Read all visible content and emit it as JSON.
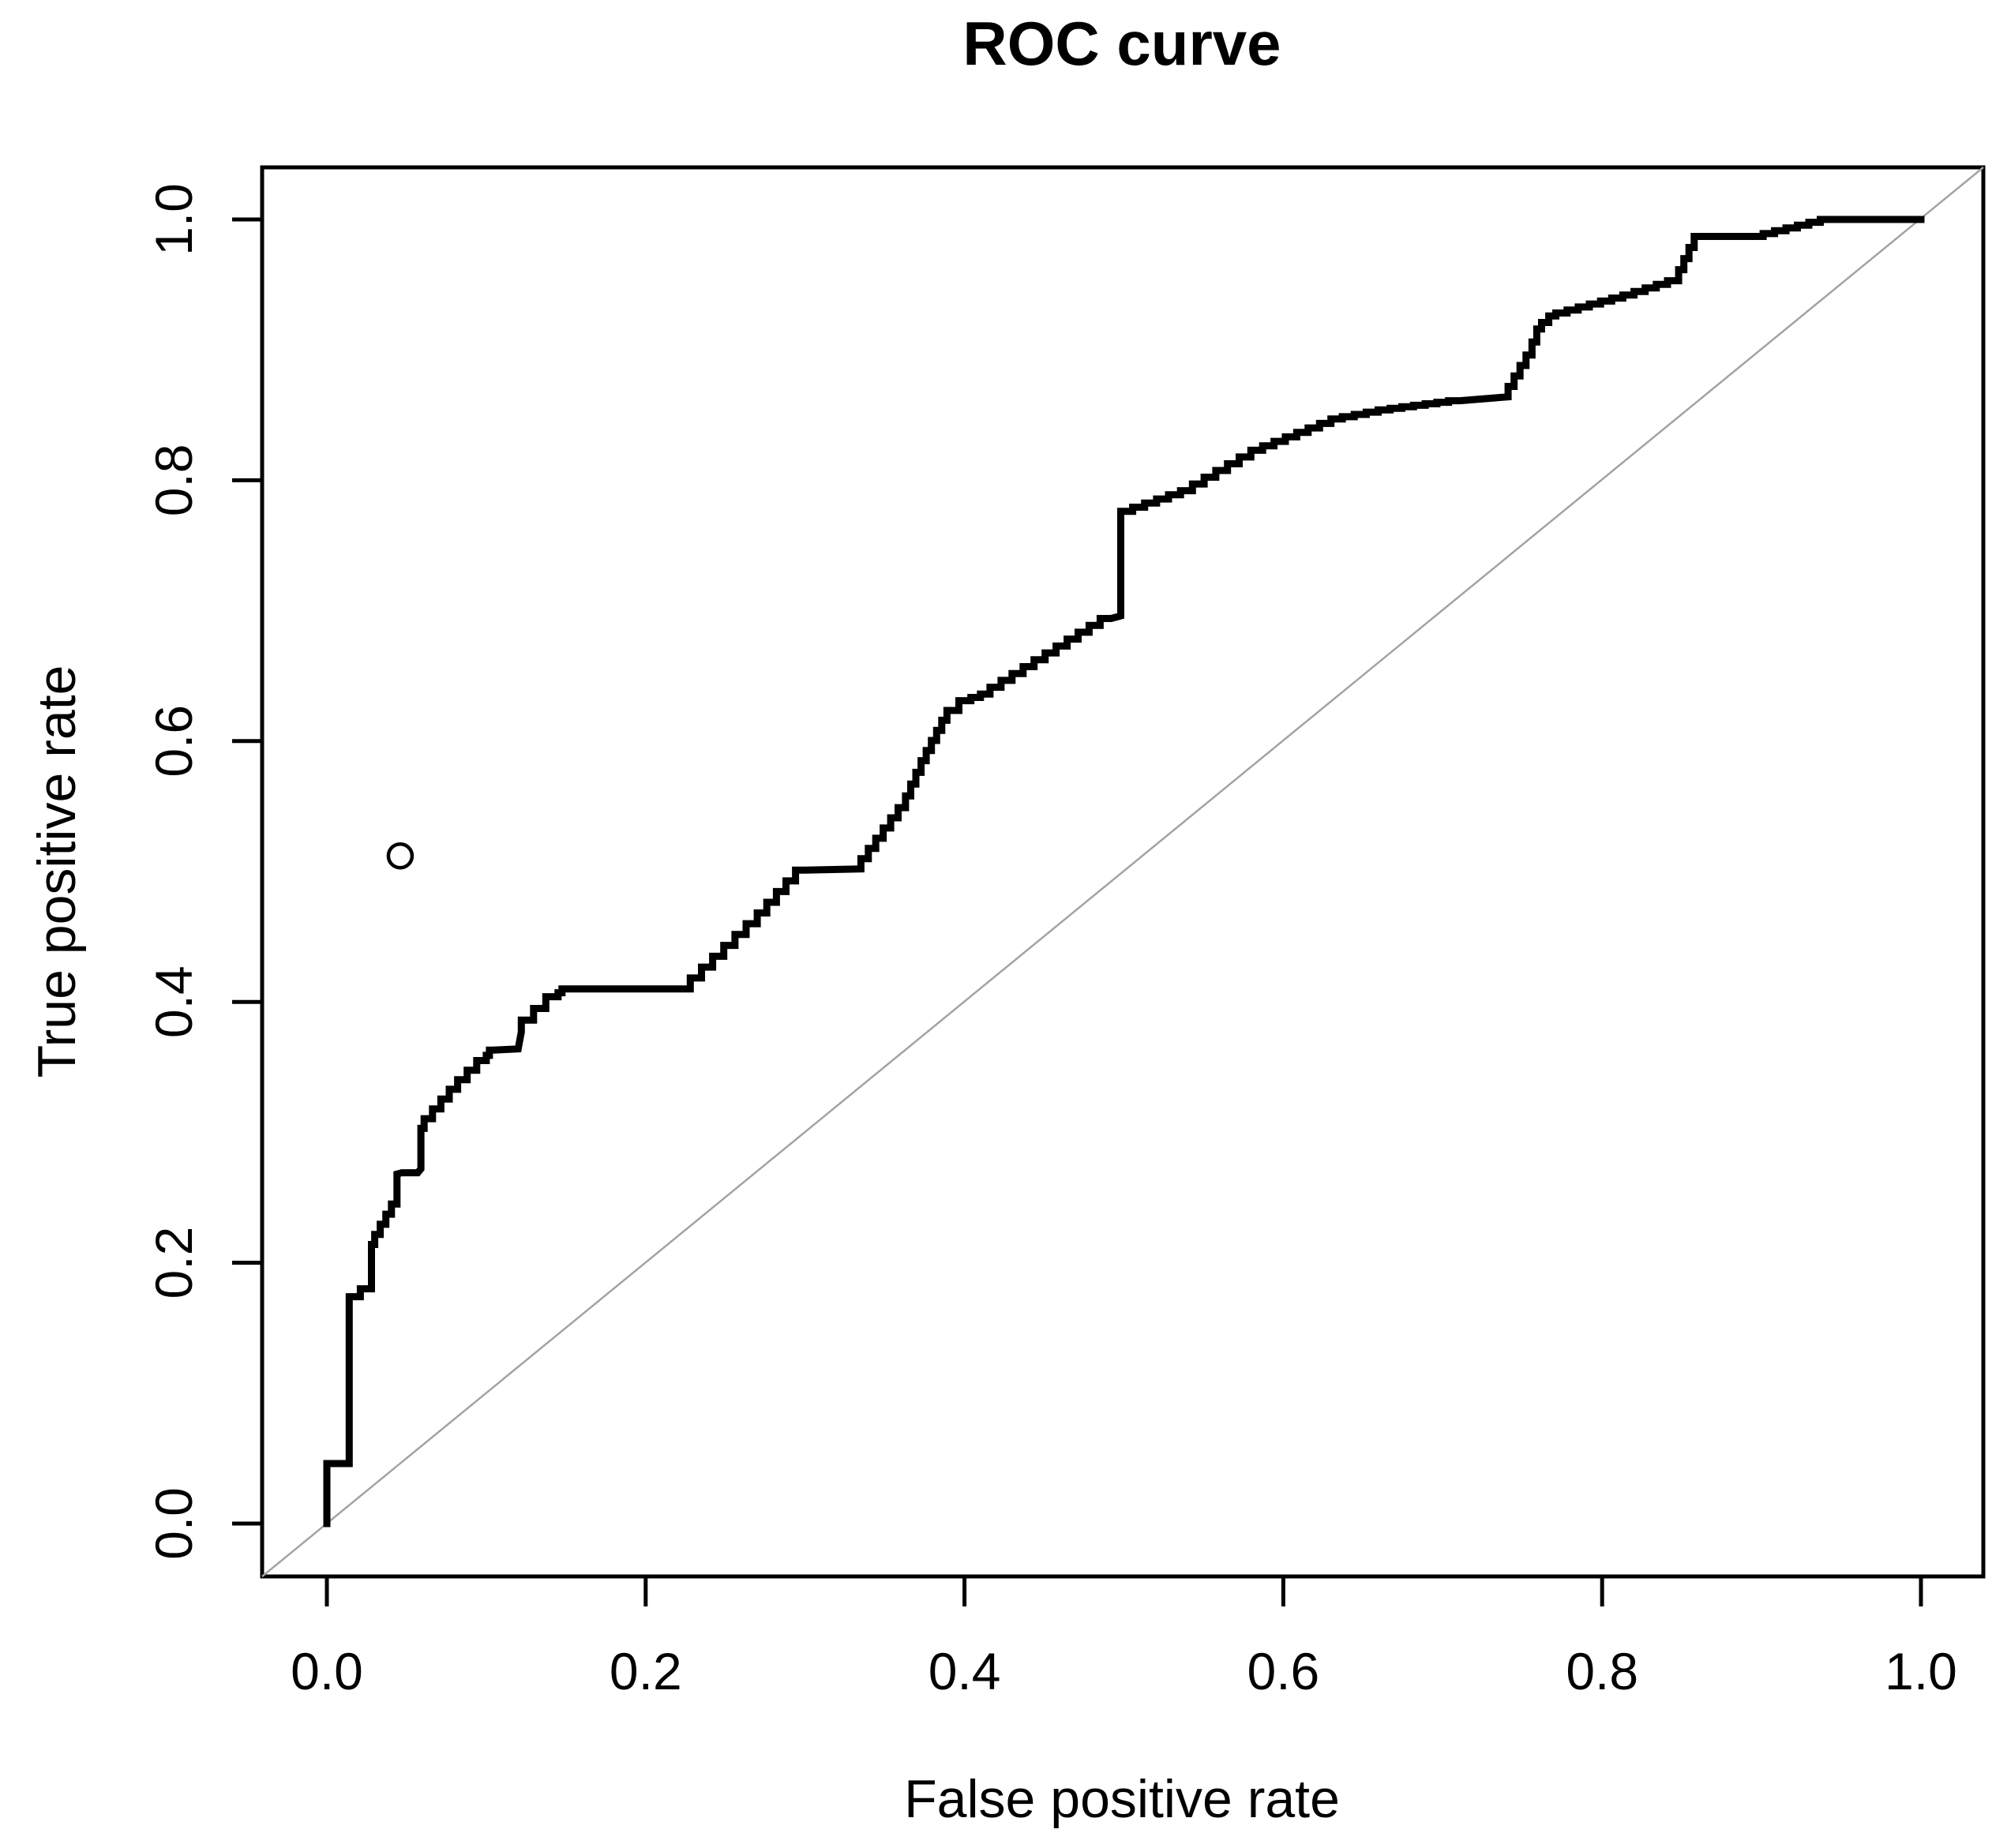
{
  "chart_data": {
    "type": "line",
    "title": "ROC curve",
    "xlabel": "False positive rate",
    "ylabel": "True positive rate",
    "xlim": [
      0.0,
      1.0
    ],
    "ylim": [
      0.0,
      1.0
    ],
    "grid": false,
    "x_ticks": [
      0.0,
      0.2,
      0.4,
      0.6,
      0.8,
      1.0
    ],
    "y_ticks": [
      0.0,
      0.2,
      0.4,
      0.6,
      0.8,
      1.0
    ],
    "x_tick_labels": [
      "0.0",
      "0.2",
      "0.4",
      "0.6",
      "0.8",
      "1.0"
    ],
    "y_tick_labels": [
      "0.0",
      "0.2",
      "0.4",
      "0.6",
      "0.8",
      "1.0"
    ],
    "series": [
      {
        "name": "ROC curve",
        "style": "step",
        "color": "#000000",
        "points": [
          [
            0.0,
            0.0
          ],
          [
            0.0,
            0.046
          ],
          [
            0.014,
            0.046
          ],
          [
            0.014,
            0.168
          ],
          [
            0.028,
            0.18
          ],
          [
            0.028,
            0.214
          ],
          [
            0.03,
            0.214
          ],
          [
            0.044,
            0.245
          ],
          [
            0.044,
            0.268
          ],
          [
            0.047,
            0.269
          ],
          [
            0.057,
            0.269
          ],
          [
            0.059,
            0.272
          ],
          [
            0.059,
            0.303
          ],
          [
            0.061,
            0.303
          ],
          [
            0.082,
            0.333
          ],
          [
            0.1,
            0.355
          ],
          [
            0.104,
            0.363
          ],
          [
            0.12,
            0.364
          ],
          [
            0.122,
            0.377
          ],
          [
            0.145,
            0.404
          ],
          [
            0.15,
            0.41
          ],
          [
            0.228,
            0.41
          ],
          [
            0.27,
            0.46
          ],
          [
            0.3,
            0.501
          ],
          [
            0.335,
            0.502
          ],
          [
            0.363,
            0.549
          ],
          [
            0.376,
            0.585
          ],
          [
            0.389,
            0.616
          ],
          [
            0.404,
            0.631
          ],
          [
            0.416,
            0.636
          ],
          [
            0.492,
            0.694
          ],
          [
            0.498,
            0.696
          ],
          [
            0.498,
            0.773
          ],
          [
            0.543,
            0.792
          ],
          [
            0.587,
            0.823
          ],
          [
            0.637,
            0.847
          ],
          [
            0.667,
            0.854
          ],
          [
            0.711,
            0.861
          ],
          [
            0.741,
            0.864
          ],
          [
            0.756,
            0.896
          ],
          [
            0.762,
            0.916
          ],
          [
            0.771,
            0.926
          ],
          [
            0.82,
            0.942
          ],
          [
            0.848,
            0.953
          ],
          [
            0.861,
            0.987
          ],
          [
            0.901,
            0.987
          ],
          [
            0.944,
            1.0
          ],
          [
            1.0,
            1.0
          ]
        ]
      }
    ],
    "reference_line": {
      "name": "chance-diagonal",
      "from": [
        0.0,
        0.0
      ],
      "to": [
        1.0,
        1.0
      ],
      "color": "#a3a3a3"
    },
    "marker": {
      "shape": "open-circle",
      "x": 0.046,
      "y": 0.512,
      "color": "#000000"
    },
    "colors": {
      "curve": "#000000",
      "diagonal": "#a3a3a3",
      "text": "#000000",
      "background": "#ffffff"
    }
  }
}
